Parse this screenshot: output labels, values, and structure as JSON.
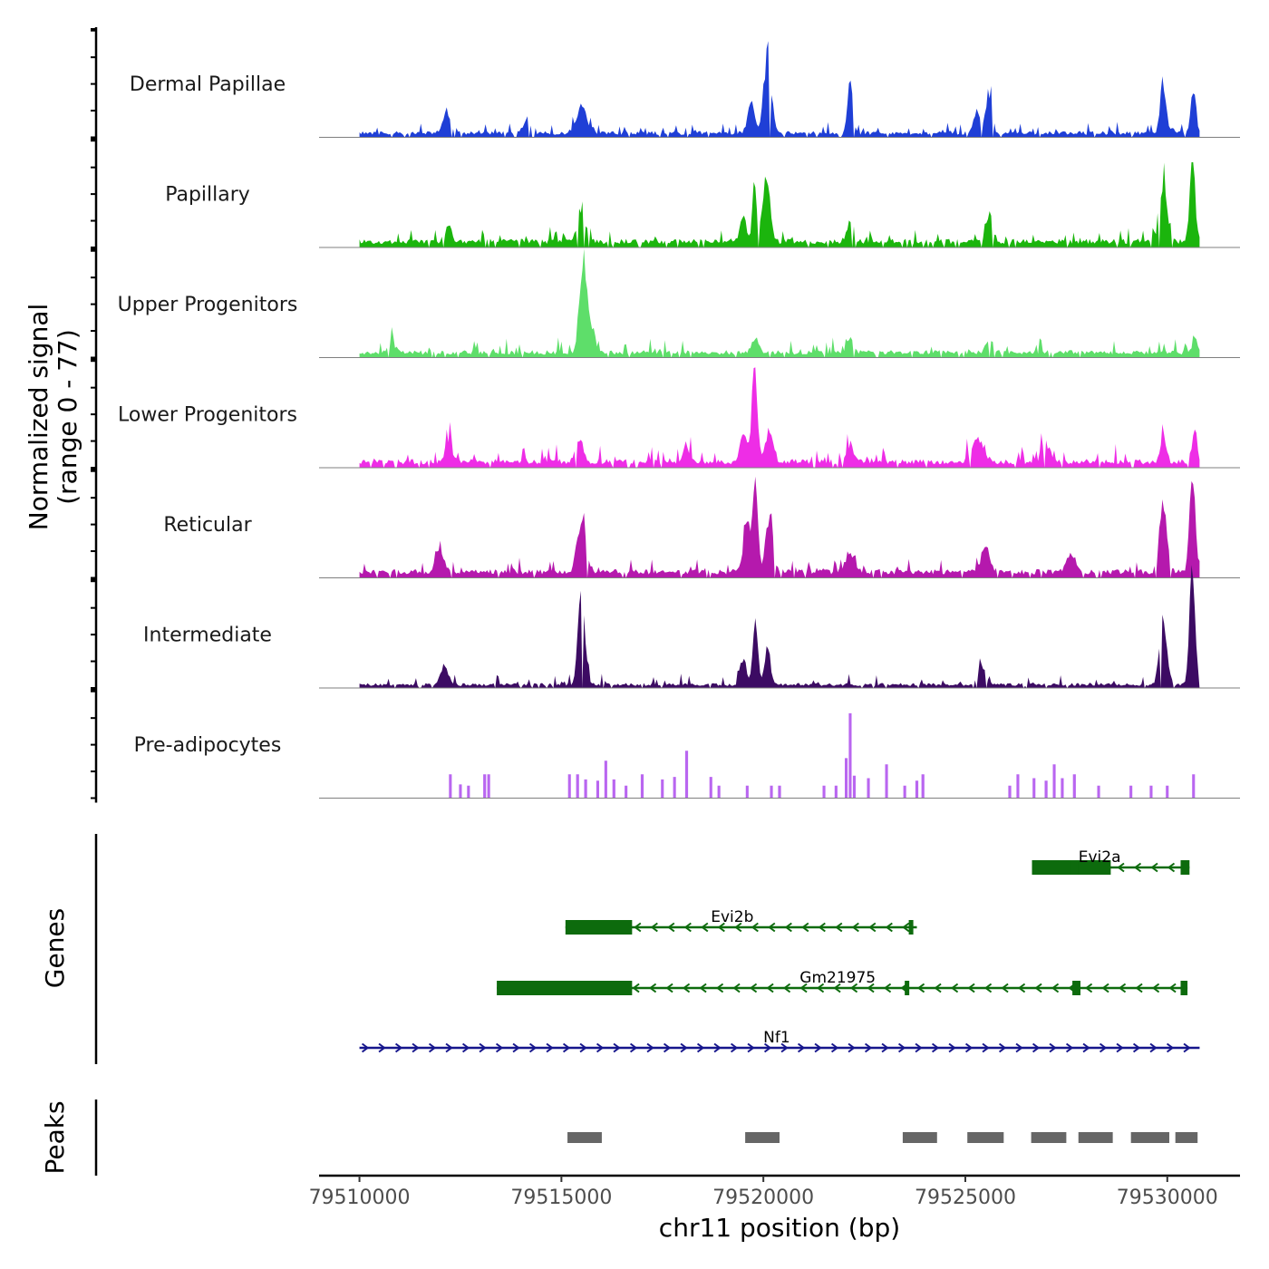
{
  "chart_data": {
    "type": "area",
    "title": "",
    "chromosome": "chr11",
    "xlabel": "chr11 position (bp)",
    "ylabel": "Normalized signal",
    "ylabel_range": "(range 0 - 77)",
    "xlim": [
      79509000,
      79531800
    ],
    "ylim": [
      0,
      77
    ],
    "x_ticks": [
      79510000,
      79515000,
      79520000,
      79525000,
      79530000
    ],
    "x_tick_labels": [
      "79510000",
      "79515000",
      "79520000",
      "79525000",
      "79530000"
    ],
    "signal_start": 79510000,
    "signal_end": 79530800,
    "tracks": [
      {
        "name": "Dermal Papillae",
        "color": "#1f3fd6",
        "baseline": 5,
        "noise": 4,
        "peaks": [
          {
            "pos": 79512150,
            "height": 17,
            "width": 90
          },
          {
            "pos": 79514150,
            "height": 12,
            "width": 90
          },
          {
            "pos": 79515500,
            "height": 22,
            "width": 140
          },
          {
            "pos": 79519700,
            "height": 26,
            "width": 80
          },
          {
            "pos": 79520100,
            "height": 70,
            "width": 90
          },
          {
            "pos": 79522150,
            "height": 45,
            "width": 60
          },
          {
            "pos": 79525600,
            "height": 38,
            "width": 70
          },
          {
            "pos": 79525300,
            "height": 18,
            "width": 90
          },
          {
            "pos": 79529900,
            "height": 47,
            "width": 70
          },
          {
            "pos": 79530650,
            "height": 40,
            "width": 60
          }
        ]
      },
      {
        "name": "Papillary",
        "color": "#1bb50d",
        "baseline": 7,
        "noise": 5,
        "peaks": [
          {
            "pos": 79512200,
            "height": 15,
            "width": 80
          },
          {
            "pos": 79515500,
            "height": 32,
            "width": 90
          },
          {
            "pos": 79519500,
            "height": 22,
            "width": 70
          },
          {
            "pos": 79519780,
            "height": 57,
            "width": 50
          },
          {
            "pos": 79520070,
            "height": 55,
            "width": 90
          },
          {
            "pos": 79522150,
            "height": 18,
            "width": 80
          },
          {
            "pos": 79525600,
            "height": 20,
            "width": 90
          },
          {
            "pos": 79529900,
            "height": 50,
            "width": 90
          },
          {
            "pos": 79530620,
            "height": 66,
            "width": 70
          }
        ]
      },
      {
        "name": "Upper Progenitors",
        "color": "#5ede6a",
        "baseline": 6,
        "noise": 5,
        "peaks": [
          {
            "pos": 79510800,
            "height": 10,
            "width": 90
          },
          {
            "pos": 79515520,
            "height": 74,
            "width": 80
          },
          {
            "pos": 79515700,
            "height": 28,
            "width": 110
          },
          {
            "pos": 79519800,
            "height": 14,
            "width": 80
          },
          {
            "pos": 79522150,
            "height": 12,
            "width": 90
          },
          {
            "pos": 79525600,
            "height": 12,
            "width": 90
          },
          {
            "pos": 79530700,
            "height": 14,
            "width": 60
          }
        ]
      },
      {
        "name": "Lower Progenitors",
        "color": "#ee2de6",
        "baseline": 7,
        "noise": 6,
        "peaks": [
          {
            "pos": 79512200,
            "height": 22,
            "width": 80
          },
          {
            "pos": 79515450,
            "height": 22,
            "width": 90
          },
          {
            "pos": 79518100,
            "height": 14,
            "width": 80
          },
          {
            "pos": 79519500,
            "height": 28,
            "width": 80
          },
          {
            "pos": 79519780,
            "height": 77,
            "width": 70
          },
          {
            "pos": 79520150,
            "height": 30,
            "width": 90
          },
          {
            "pos": 79522150,
            "height": 14,
            "width": 80
          },
          {
            "pos": 79525300,
            "height": 18,
            "width": 150
          },
          {
            "pos": 79527000,
            "height": 16,
            "width": 110
          },
          {
            "pos": 79529900,
            "height": 22,
            "width": 70
          },
          {
            "pos": 79530680,
            "height": 25,
            "width": 60
          }
        ]
      },
      {
        "name": "Reticular",
        "color": "#b519ad",
        "baseline": 7,
        "noise": 5,
        "peaks": [
          {
            "pos": 79512000,
            "height": 18,
            "width": 100
          },
          {
            "pos": 79515500,
            "height": 42,
            "width": 100
          },
          {
            "pos": 79519580,
            "height": 46,
            "width": 80
          },
          {
            "pos": 79519800,
            "height": 90,
            "width": 60
          },
          {
            "pos": 79520150,
            "height": 50,
            "width": 90
          },
          {
            "pos": 79522150,
            "height": 16,
            "width": 110
          },
          {
            "pos": 79525500,
            "height": 20,
            "width": 110
          },
          {
            "pos": 79527600,
            "height": 16,
            "width": 100
          },
          {
            "pos": 79529900,
            "height": 58,
            "width": 90
          },
          {
            "pos": 79530620,
            "height": 84,
            "width": 70
          }
        ]
      },
      {
        "name": "Intermediate",
        "color": "#3c0b63",
        "baseline": 4,
        "noise": 4,
        "peaks": [
          {
            "pos": 79512100,
            "height": 16,
            "width": 90
          },
          {
            "pos": 79515500,
            "height": 88,
            "width": 80
          },
          {
            "pos": 79519500,
            "height": 24,
            "width": 70
          },
          {
            "pos": 79519800,
            "height": 60,
            "width": 60
          },
          {
            "pos": 79520100,
            "height": 36,
            "width": 70
          },
          {
            "pos": 79525400,
            "height": 16,
            "width": 100
          },
          {
            "pos": 79529900,
            "height": 62,
            "width": 90
          },
          {
            "pos": 79530620,
            "height": 96,
            "width": 70
          }
        ]
      },
      {
        "name": "Pre-adipocytes",
        "color": "#b966f0",
        "baseline": 0,
        "noise": 0,
        "sparse": true,
        "spikes": [
          [
            79512250,
            19
          ],
          [
            79512500,
            11
          ],
          [
            79512700,
            10
          ],
          [
            79513100,
            19
          ],
          [
            79513200,
            19
          ],
          [
            79515200,
            19
          ],
          [
            79515400,
            19
          ],
          [
            79515600,
            15
          ],
          [
            79515900,
            14
          ],
          [
            79516100,
            30
          ],
          [
            79516300,
            15
          ],
          [
            79516600,
            10
          ],
          [
            79517000,
            19
          ],
          [
            79517500,
            15
          ],
          [
            79517800,
            17
          ],
          [
            79518100,
            38
          ],
          [
            79518700,
            17
          ],
          [
            79518900,
            10
          ],
          [
            79519600,
            10
          ],
          [
            79520200,
            10
          ],
          [
            79520400,
            10
          ],
          [
            79521500,
            10
          ],
          [
            79521800,
            10
          ],
          [
            79522050,
            32
          ],
          [
            79522150,
            68
          ],
          [
            79522250,
            18
          ],
          [
            79522600,
            16
          ],
          [
            79523050,
            27
          ],
          [
            79523500,
            10
          ],
          [
            79523800,
            14
          ],
          [
            79523950,
            19
          ],
          [
            79526100,
            10
          ],
          [
            79526300,
            19
          ],
          [
            79526700,
            16
          ],
          [
            79527000,
            14
          ],
          [
            79527200,
            27
          ],
          [
            79527400,
            16
          ],
          [
            79527700,
            19
          ],
          [
            79528300,
            10
          ],
          [
            79529100,
            10
          ],
          [
            79529600,
            10
          ],
          [
            79530000,
            10
          ],
          [
            79530650,
            19
          ]
        ]
      }
    ],
    "genes_label": "Genes",
    "genes": [
      {
        "name": "Evi2a",
        "strand": "-",
        "start": 79526650,
        "end": 79530550,
        "label_pos": 79527800,
        "thick": [
          [
            79526650,
            79528600
          ]
        ],
        "exons": [
          [
            79530330,
            79530550
          ],
          [
            79527600,
            79527800
          ]
        ]
      },
      {
        "name": "Evi2b",
        "strand": "-",
        "start": 79515100,
        "end": 79523800,
        "label_pos": 79518700,
        "thick": [
          [
            79515100,
            79516750
          ]
        ],
        "exons": [
          [
            79523600,
            79523700
          ]
        ]
      },
      {
        "name": "Gm21975",
        "strand": "-",
        "start": 79513400,
        "end": 79530500,
        "label_pos": 79520900,
        "thick": [
          [
            79513400,
            79516750
          ]
        ],
        "exons": [
          [
            79523500,
            79523600
          ],
          [
            79527650,
            79527850
          ],
          [
            79530330,
            79530500
          ]
        ]
      },
      {
        "name": "Nf1",
        "strand": "+",
        "start": 79510000,
        "end": 79530800,
        "label_pos": 79520000,
        "thick": [],
        "exons": []
      }
    ],
    "peaks_label": "Peaks",
    "peaks": [
      [
        79515150,
        79516000
      ],
      [
        79519550,
        79520400
      ],
      [
        79523450,
        79524300
      ],
      [
        79525050,
        79525950
      ],
      [
        79526630,
        79527500
      ],
      [
        79527800,
        79528650
      ],
      [
        79529100,
        79530050
      ],
      [
        79530200,
        79530750
      ]
    ]
  }
}
